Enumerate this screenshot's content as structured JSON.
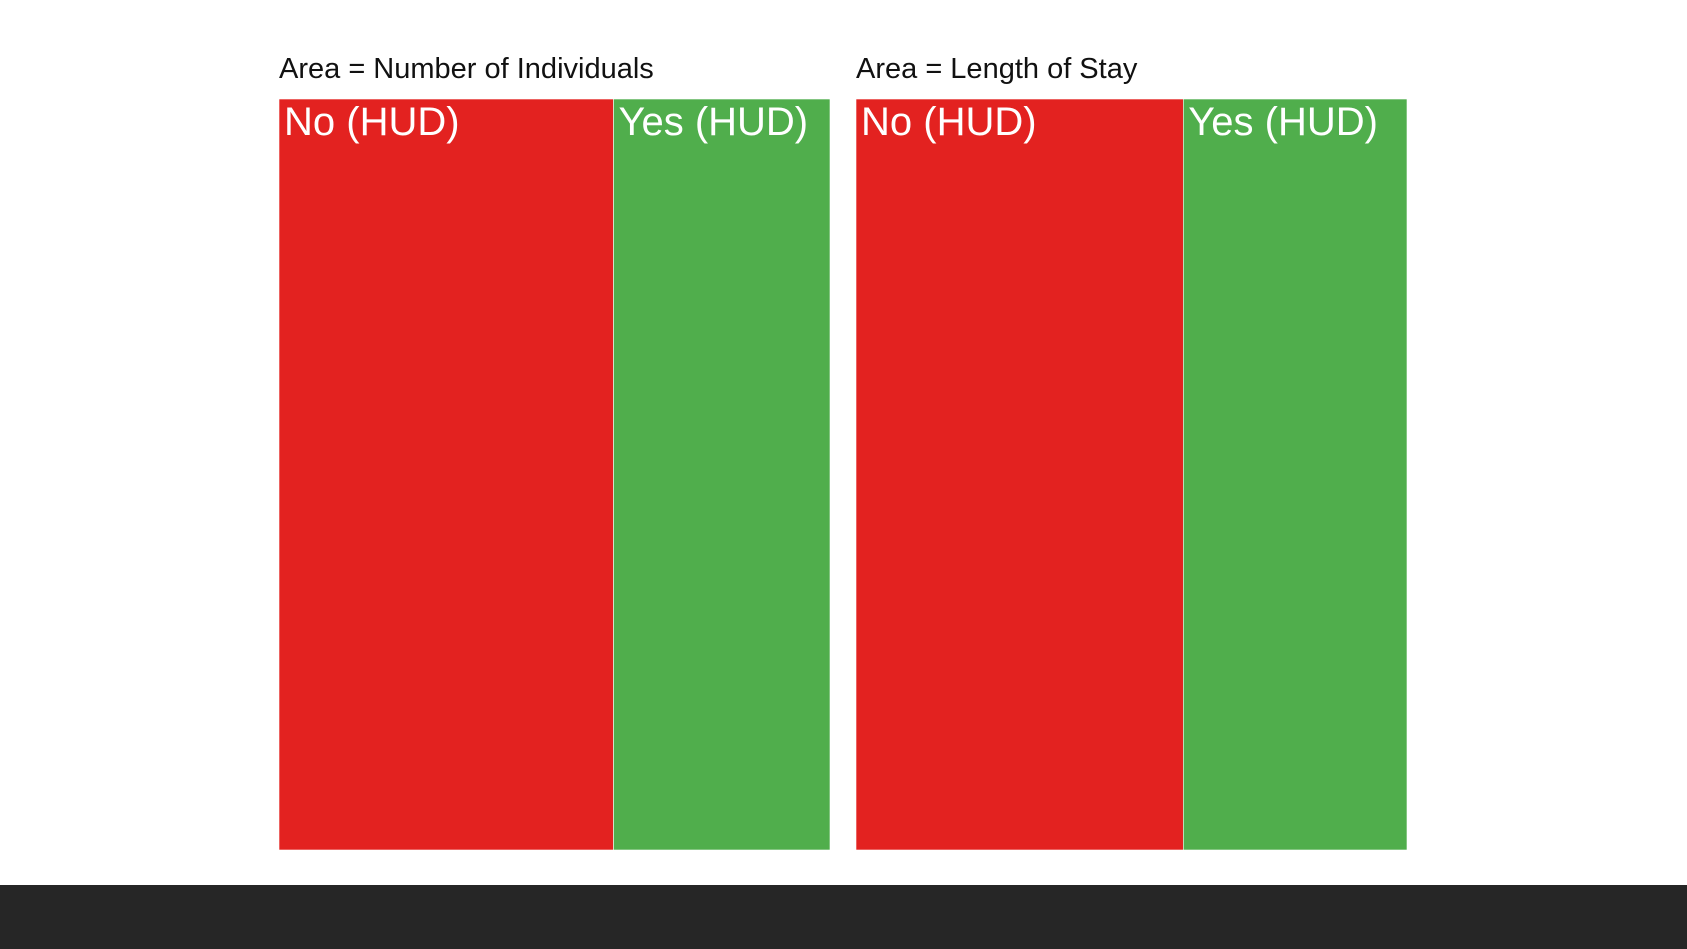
{
  "colors": {
    "no": "#e32220",
    "yes": "#50ae4c",
    "label": "#ffffff",
    "bottom_bar": "#262626"
  },
  "chart_data": [
    {
      "type": "treemap",
      "title": "Area = Number of Individuals",
      "categories": [
        "No (HUD)",
        "Yes (HUD)"
      ],
      "values": [
        0.607,
        0.393
      ],
      "colors": [
        "#e32220",
        "#50ae4c"
      ]
    },
    {
      "type": "treemap",
      "title": "Area = Length of Stay",
      "categories": [
        "No (HUD)",
        "Yes (HUD)"
      ],
      "values": [
        0.594,
        0.406
      ],
      "colors": [
        "#e32220",
        "#50ae4c"
      ]
    }
  ]
}
